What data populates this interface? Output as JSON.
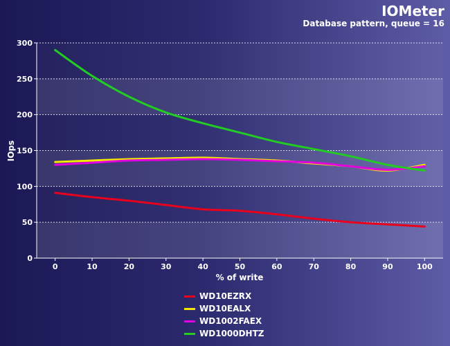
{
  "header": {
    "title": "IOMeter",
    "subtitle": "Database pattern, queue = 16"
  },
  "chart_data": {
    "type": "line",
    "xlabel": "% of write",
    "ylabel": "IOps",
    "x": [
      0,
      10,
      20,
      30,
      40,
      50,
      60,
      70,
      80,
      90,
      100
    ],
    "xlim": [
      -5,
      105
    ],
    "ylim": [
      0,
      300
    ],
    "yticks": [
      0,
      50,
      100,
      150,
      200,
      250,
      300
    ],
    "grid": true,
    "legend_position": "bottom",
    "series": [
      {
        "name": "WD10EZRX",
        "color": "#e8001c",
        "values": [
          91,
          85,
          80,
          74,
          68,
          66,
          61,
          55,
          50,
          47,
          44
        ]
      },
      {
        "name": "WD10EALX",
        "color": "#f5e800",
        "values": [
          134,
          136,
          138,
          139,
          140,
          138,
          136,
          132,
          128,
          122,
          130
        ]
      },
      {
        "name": "WD1002FAEX",
        "color": "#e000e0",
        "values": [
          130,
          133,
          136,
          137,
          138,
          137,
          135,
          133,
          128,
          123,
          128
        ]
      },
      {
        "name": "WD1000DHTZ",
        "color": "#22cc22",
        "values": [
          290,
          254,
          225,
          203,
          188,
          175,
          162,
          152,
          142,
          130,
          122
        ]
      }
    ]
  }
}
